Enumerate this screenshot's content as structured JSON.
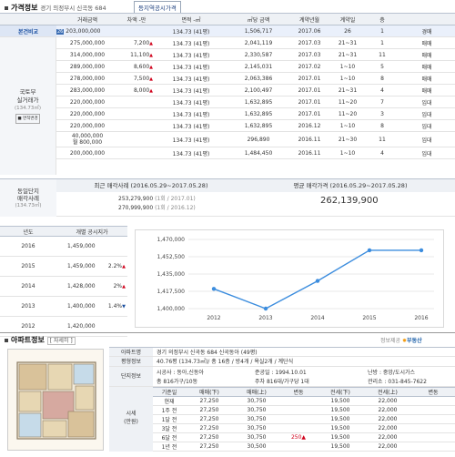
{
  "price_info": {
    "title": "가격정보",
    "location": "경기 의정부시 신곡동 684",
    "tag_btn": "등지역공시가격",
    "select_value": "전체",
    "headers": [
      "거래금액",
      "차액 -만",
      "면적 -㎡",
      "㎡당 금액",
      "계약년월",
      "계약일",
      "층",
      "매매"
    ],
    "compare_label": "본건비교",
    "compare_row": {
      "badge": "26",
      "price": "203,000,000",
      "area": "134.73 (41평)",
      "per_m2": "1,506,717",
      "ym": "2017.06",
      "day": "26",
      "floor": "1",
      "type": "경매"
    },
    "side_label_1": "국토부",
    "side_label_2": "실거래가",
    "side_label_3": "(134.73㎡)",
    "side_btn": "■ 면적변경",
    "rows": [
      {
        "price": "275,000,000",
        "diff": "7,200",
        "arrow": "▲",
        "area": "134.73 (41평)",
        "per_m2": "2,041,119",
        "ym": "2017.03",
        "day": "21~31",
        "floor": "1",
        "type": "매매"
      },
      {
        "price": "314,000,000",
        "diff": "11,100",
        "arrow": "▲",
        "area": "134.73 (41평)",
        "per_m2": "2,330,587",
        "ym": "2017.03",
        "day": "21~31",
        "floor": "11",
        "type": "매매"
      },
      {
        "price": "289,000,000",
        "diff": "8,600",
        "arrow": "▲",
        "area": "134.73 (41평)",
        "per_m2": "2,145,031",
        "ym": "2017.02",
        "day": "1~10",
        "floor": "5",
        "type": "매매"
      },
      {
        "price": "278,000,000",
        "diff": "7,500",
        "arrow": "▲",
        "area": "134.73 (41평)",
        "per_m2": "2,063,386",
        "ym": "2017.01",
        "day": "1~10",
        "floor": "8",
        "type": "매매"
      },
      {
        "price": "283,000,000",
        "diff": "8,000",
        "arrow": "▲",
        "area": "134.73 (41평)",
        "per_m2": "2,100,497",
        "ym": "2017.01",
        "day": "21~31",
        "floor": "4",
        "type": "매매"
      },
      {
        "price": "220,000,000",
        "diff": "",
        "arrow": "",
        "area": "134.73 (41평)",
        "per_m2": "1,632,895",
        "ym": "2017.01",
        "day": "11~20",
        "floor": "7",
        "type": "임대"
      },
      {
        "price": "220,000,000",
        "diff": "",
        "arrow": "",
        "area": "134.73 (41평)",
        "per_m2": "1,632,895",
        "ym": "2017.01",
        "day": "11~20",
        "floor": "3",
        "type": "임대"
      },
      {
        "price": "220,000,000",
        "diff": "",
        "arrow": "",
        "area": "134.73 (41평)",
        "per_m2": "1,632,895",
        "ym": "2016.12",
        "day": "1~10",
        "floor": "8",
        "type": "임대"
      },
      {
        "price": "40,000,000",
        "price2": "월 800,000",
        "diff": "",
        "arrow": "",
        "area": "134.73 (41평)",
        "per_m2": "296,890",
        "ym": "2016.11",
        "day": "21~30",
        "floor": "11",
        "type": "임대"
      },
      {
        "price": "200,000,000",
        "diff": "",
        "arrow": "",
        "area": "134.73 (41평)",
        "per_m2": "1,484,450",
        "ym": "2016.11",
        "day": "1~10",
        "floor": "4",
        "type": "임대"
      }
    ]
  },
  "recent": {
    "side_1": "동일단지",
    "side_2": "매각사례",
    "side_3": "(134.73㎡)",
    "label_recent": "최근 매각사례 (2016.05.29~2017.05.28)",
    "label_avg": "평균 매각가격 (2016.05.29~2017.05.28)",
    "case1": "253,279,900",
    "case1_note": "(1회 / 2017.01)",
    "case2": "270,999,900",
    "case2_note": "(1회 / 2016.12)",
    "avg": "262,139,900"
  },
  "gongsi": {
    "col_year": "년도",
    "col_price": "개별 공시지가",
    "rows": [
      {
        "year": "2016",
        "price": "1,459,000",
        "pct": "",
        "arrow": ""
      },
      {
        "year": "2015",
        "price": "1,459,000",
        "pct": "2.2%",
        "arrow": "▲"
      },
      {
        "year": "2014",
        "price": "1,428,000",
        "pct": "2%",
        "arrow": "▲"
      },
      {
        "year": "2013",
        "price": "1,400,000",
        "pct": "1.4%",
        "arrow": "▼"
      },
      {
        "year": "2012",
        "price": "1,420,000",
        "pct": "",
        "arrow": ""
      }
    ]
  },
  "chart_data": {
    "type": "line",
    "x": [
      "2012",
      "2013",
      "2014",
      "2015",
      "2016"
    ],
    "series": [
      {
        "values": [
          1420000,
          1400000,
          1428000,
          1459000,
          1459000
        ]
      }
    ],
    "yticks": [
      "1,470,000",
      "1,452,500",
      "1,435,000",
      "1,417,500",
      "1,400,000"
    ],
    "ylim": [
      1400000,
      1470000
    ],
    "color": "#3c8dde"
  },
  "apt": {
    "title": "아파트정보",
    "detail_btn": "자세히",
    "provider": "정보제공",
    "brand": "부동산",
    "label_name": "아파트명",
    "name": "경기 의정부시 신곡동 684 신곡동아 (49평)",
    "label_area": "평형정보",
    "area": "40.76평 (134.73㎡)/ 총 16층 / 방4개 / 욕실2개 / 계단식",
    "label_danji": "단지정보",
    "builder": "시공사 : 동아,신동아",
    "complete": "준공일 : 1994.10.01",
    "heat": "난방 : 중앙/도시가스",
    "households": "총 816가구/10동",
    "parking": "주차 816대/가구당 1대",
    "office": "관리소 : 031-845-7622",
    "label_price": "시세",
    "label_price2": "(만원)",
    "headers": [
      "기준일",
      "매매(下)",
      "매매(上)",
      "변동",
      "전세(下)",
      "전세(上)",
      "변동"
    ],
    "rows": [
      {
        "d": "현재",
        "a": "27,250",
        "b": "30,750",
        "c": "",
        "e": "19,500",
        "f": "22,000",
        "g": ""
      },
      {
        "d": "1주 전",
        "a": "27,250",
        "b": "30,750",
        "c": "",
        "e": "19,500",
        "f": "22,000",
        "g": ""
      },
      {
        "d": "1달 전",
        "a": "27,250",
        "b": "30,750",
        "c": "",
        "e": "19,500",
        "f": "22,000",
        "g": ""
      },
      {
        "d": "3달 전",
        "a": "27,250",
        "b": "30,750",
        "c": "",
        "e": "19,500",
        "f": "22,000",
        "g": ""
      },
      {
        "d": "6달 전",
        "a": "27,250",
        "b": "30,750",
        "c": "250▲",
        "e": "19,500",
        "f": "22,000",
        "g": ""
      },
      {
        "d": "1년 전",
        "a": "27,250",
        "b": "30,500",
        "c": "",
        "e": "19,500",
        "f": "22,000",
        "g": ""
      }
    ]
  }
}
